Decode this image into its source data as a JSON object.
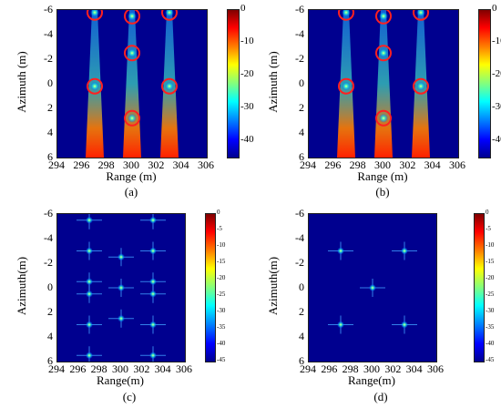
{
  "colors": {
    "background": "#00008f",
    "marker_circle": "#ff2020"
  },
  "chart_data": [
    {
      "type": "heatmap",
      "caption": "(a)",
      "xlabel": "Range (m)",
      "ylabel": "Azimuth (m)",
      "xlim": [
        294,
        306
      ],
      "ylim": [
        -6,
        6
      ],
      "x_ticks": [
        "294",
        "296",
        "298",
        "300",
        "302",
        "304",
        "306"
      ],
      "y_ticks": [
        "-6",
        "-4",
        "-2",
        "0",
        "2",
        "4",
        "6"
      ],
      "colorbar": {
        "range": [
          -45,
          0
        ],
        "ticks": [
          "0",
          "-10",
          "-20",
          "-30",
          "-40"
        ]
      },
      "targets": [
        {
          "x": 297,
          "y": -5.8
        },
        {
          "x": 300,
          "y": -5.5
        },
        {
          "x": 303,
          "y": -5.8
        },
        {
          "x": 300,
          "y": -2.5
        },
        {
          "x": 297,
          "y": 0.2
        },
        {
          "x": 303,
          "y": 0.2
        },
        {
          "x": 300,
          "y": 2.8
        }
      ],
      "circles": true
    },
    {
      "type": "heatmap",
      "caption": "(b)",
      "xlabel": "Range (m)",
      "ylabel": "Azimuth (m)",
      "xlim": [
        294,
        306
      ],
      "ylim": [
        -6,
        6
      ],
      "x_ticks": [
        "294",
        "296",
        "298",
        "300",
        "302",
        "304",
        "306"
      ],
      "y_ticks": [
        "-6",
        "-4",
        "-2",
        "0",
        "2",
        "4",
        "6"
      ],
      "colorbar": {
        "range": [
          -45,
          0
        ],
        "ticks": [
          "0",
          "-10",
          "-20",
          "-30",
          "-40"
        ]
      },
      "targets": [
        {
          "x": 297,
          "y": -5.8
        },
        {
          "x": 300,
          "y": -5.5
        },
        {
          "x": 303,
          "y": -5.8
        },
        {
          "x": 300,
          "y": -2.5
        },
        {
          "x": 297,
          "y": 0.2
        },
        {
          "x": 303,
          "y": 0.2
        },
        {
          "x": 300,
          "y": 2.8
        }
      ],
      "circles": true
    },
    {
      "type": "heatmap",
      "caption": "(c)",
      "xlabel": "Range(m)",
      "ylabel": "Azimuth(m)",
      "xlim": [
        294,
        306
      ],
      "ylim": [
        -6,
        6
      ],
      "x_ticks": [
        "294",
        "296",
        "298",
        "300",
        "302",
        "304",
        "306"
      ],
      "y_ticks": [
        "-6",
        "-4",
        "-2",
        "0",
        "2",
        "4",
        "6"
      ],
      "colorbar": {
        "range": [
          -45,
          0
        ],
        "ticks": [
          "0",
          "-5",
          "-10",
          "-15",
          "-20",
          "-25",
          "-30",
          "-35",
          "-40",
          "-45"
        ]
      },
      "targets": [
        {
          "x": 297,
          "y": -5.5
        },
        {
          "x": 303,
          "y": -5.5
        },
        {
          "x": 297,
          "y": -3
        },
        {
          "x": 300,
          "y": -2.5
        },
        {
          "x": 303,
          "y": -3
        },
        {
          "x": 297,
          "y": -0.5
        },
        {
          "x": 303,
          "y": -0.5
        },
        {
          "x": 300,
          "y": 0
        },
        {
          "x": 297,
          "y": 0.5
        },
        {
          "x": 303,
          "y": 0.5
        },
        {
          "x": 297,
          "y": 3
        },
        {
          "x": 300,
          "y": 2.5
        },
        {
          "x": 303,
          "y": 3
        },
        {
          "x": 297,
          "y": 5.5
        },
        {
          "x": 303,
          "y": 5.5
        }
      ],
      "circles": false
    },
    {
      "type": "heatmap",
      "caption": "(d)",
      "xlabel": "Range(m)",
      "ylabel": "Azimuth(m)",
      "xlim": [
        294,
        306
      ],
      "ylim": [
        -6,
        6
      ],
      "x_ticks": [
        "294",
        "296",
        "298",
        "300",
        "302",
        "304",
        "306"
      ],
      "y_ticks": [
        "-6",
        "-4",
        "-2",
        "0",
        "2",
        "4",
        "6"
      ],
      "colorbar": {
        "range": [
          -45,
          0
        ],
        "ticks": [
          "0",
          "-5",
          "-10",
          "-15",
          "-20",
          "-25",
          "-30",
          "-35",
          "-40",
          "-45"
        ]
      },
      "targets": [
        {
          "x": 297,
          "y": -3
        },
        {
          "x": 303,
          "y": -3
        },
        {
          "x": 300,
          "y": 0
        },
        {
          "x": 297,
          "y": 3
        },
        {
          "x": 303,
          "y": 3
        }
      ],
      "circles": false
    }
  ]
}
